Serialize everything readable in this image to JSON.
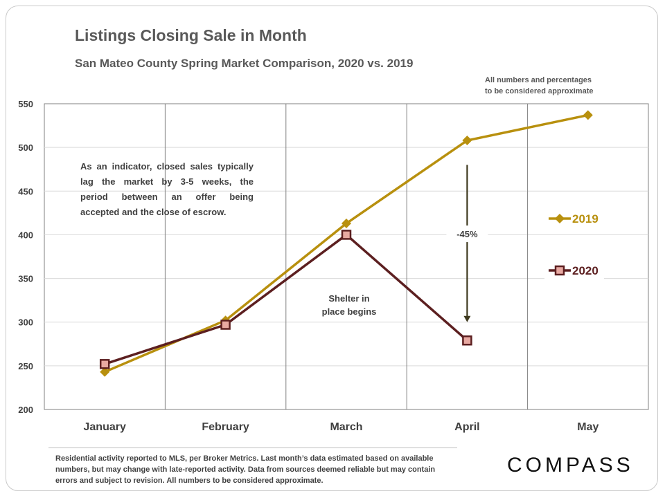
{
  "header": {
    "title": "Listings Closing Sale in Month",
    "subtitle": "San Mateo County Spring Market Comparison,  2020 vs. 2019"
  },
  "note_lines": [
    "All numbers and percentages",
    "to be considered approximate"
  ],
  "indicator_lines": [
    "As an indicator, closed sales typically",
    "lag the market by 3-5 weeks, the",
    "period between an offer being",
    "accepted and the close of escrow."
  ],
  "footer_text": "Residential activity reported to MLS, per Broker Metrics. Last month’s data estimated based on available numbers, but may change with late-reported activity. Data from sources deemed reliable but may contain errors and subject to revision. All numbers to be considered approximate.",
  "brand": "COMPASS",
  "colors": {
    "series_2019": "#B8900E",
    "series_2020": "#5C1F20",
    "marker_2020_fill": "#E8A9A2",
    "arrow": "#3F3A1F"
  },
  "chart_data": {
    "type": "line",
    "categories": [
      "January",
      "February",
      "March",
      "April",
      "May"
    ],
    "series": [
      {
        "name": "2019",
        "values": [
          243,
          302,
          413,
          508,
          537
        ],
        "color": "#B8900E",
        "marker": "diamond"
      },
      {
        "name": "2020",
        "values": [
          252,
          297,
          400,
          279,
          null
        ],
        "color": "#5C1F20",
        "marker": "square"
      }
    ],
    "ylim": [
      200,
      550
    ],
    "yticks": [
      200,
      250,
      300,
      350,
      400,
      450,
      500,
      550
    ],
    "grid": true,
    "legend_position": "right",
    "annotations": {
      "arrow_label": "-45%",
      "arrow_from": 480,
      "arrow_to": 300,
      "arrow_category": "April",
      "shelter_label_lines": [
        "Shelter in",
        "place begins"
      ]
    }
  }
}
